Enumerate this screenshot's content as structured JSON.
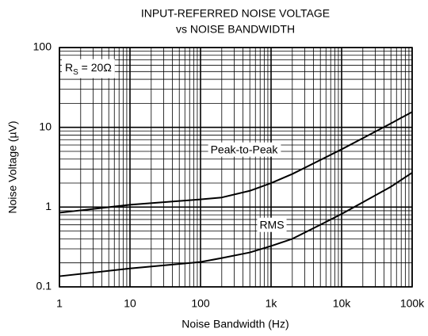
{
  "chart_data": {
    "type": "line",
    "title": [
      "INPUT-REFERRED NOISE VOLTAGE",
      "vs NOISE BANDWIDTH"
    ],
    "annotation": [
      "R",
      "S",
      " = 20Ω"
    ],
    "x_label": "Noise Bandwidth (Hz)",
    "y_label": "Noise Voltage  (µV)",
    "xscale": "log",
    "yscale": "log",
    "xlim": [
      1,
      100000
    ],
    "ylim": [
      0.1,
      100
    ],
    "xticks": [
      1,
      10,
      100,
      {
        "value": 1000,
        "label": "1k"
      },
      {
        "value": 10000,
        "label": "10k"
      },
      {
        "value": 100000,
        "label": "100k"
      }
    ],
    "yticks": [
      0.1,
      1,
      10,
      100
    ],
    "grid": true,
    "minor_grid": true,
    "x": [
      1,
      10,
      100,
      200,
      500,
      1000,
      2000,
      5000,
      10000,
      20000,
      50000,
      100000
    ],
    "series": [
      {
        "name": "Peak-to-Peak",
        "color": "#000000",
        "values": [
          0.85,
          1.07,
          1.25,
          1.32,
          1.6,
          2.0,
          2.6,
          3.9,
          5.3,
          7.3,
          11.2,
          15.6
        ]
      },
      {
        "name": "RMS",
        "color": "#000000",
        "values": [
          0.136,
          0.17,
          0.205,
          0.23,
          0.27,
          0.325,
          0.4,
          0.6,
          0.82,
          1.15,
          1.8,
          2.7
        ]
      }
    ]
  }
}
